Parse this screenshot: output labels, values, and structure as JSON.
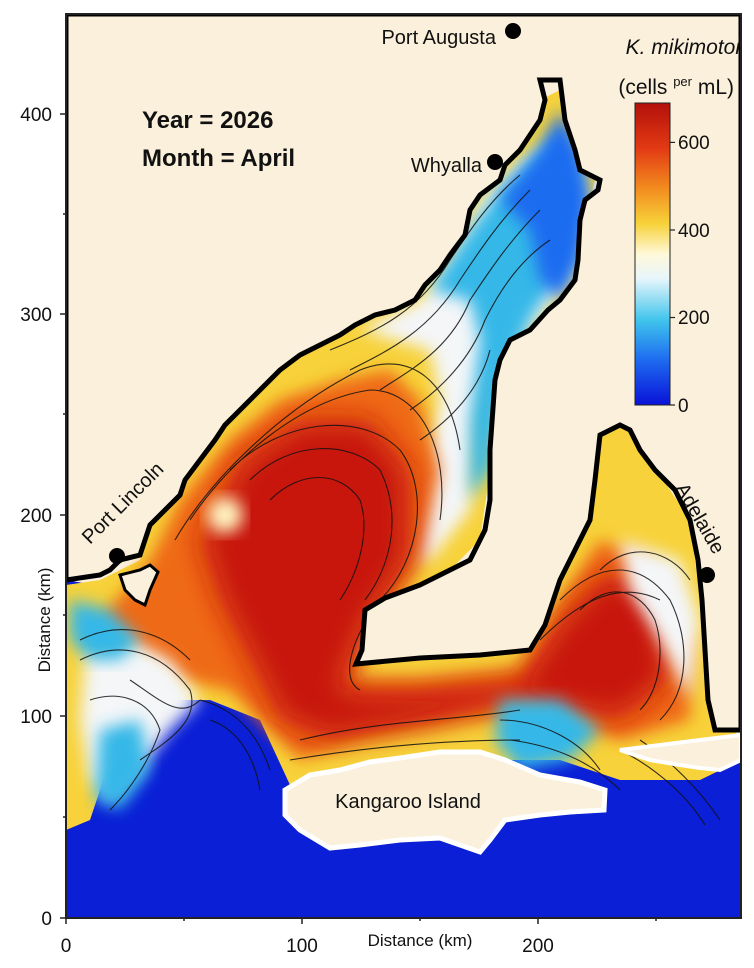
{
  "annotations": {
    "year_line": "Year = 2026",
    "month_line": "Month = April"
  },
  "axes": {
    "x_title": "Distance (km)",
    "y_title": "Distance (km)",
    "x_ticks": [
      "0",
      "100",
      "200"
    ],
    "y_ticks": [
      "0",
      "100",
      "200",
      "300",
      "400"
    ]
  },
  "places": [
    {
      "name": "Port Augusta"
    },
    {
      "name": "Whyalla"
    },
    {
      "name": "Port Lincoln"
    },
    {
      "name": "Adelaide"
    },
    {
      "name": "Kangaroo Island"
    }
  ],
  "colorbar": {
    "species": "K. mikimotoi",
    "unit_open": "(cells ",
    "unit_sup": "per",
    "unit_close": " mL)",
    "ticks": [
      "0",
      "200",
      "400",
      "600"
    ],
    "min": 0,
    "max": 690
  },
  "colors": {
    "land": "#fbf0dc",
    "deep_blue": "#0a1fd6",
    "red": "#c8150c",
    "orange": "#ef6a18",
    "yellow": "#f7d23a",
    "white": "#f4f6f8",
    "cyan": "#34b8e8",
    "coast_outline": "#000000"
  }
}
